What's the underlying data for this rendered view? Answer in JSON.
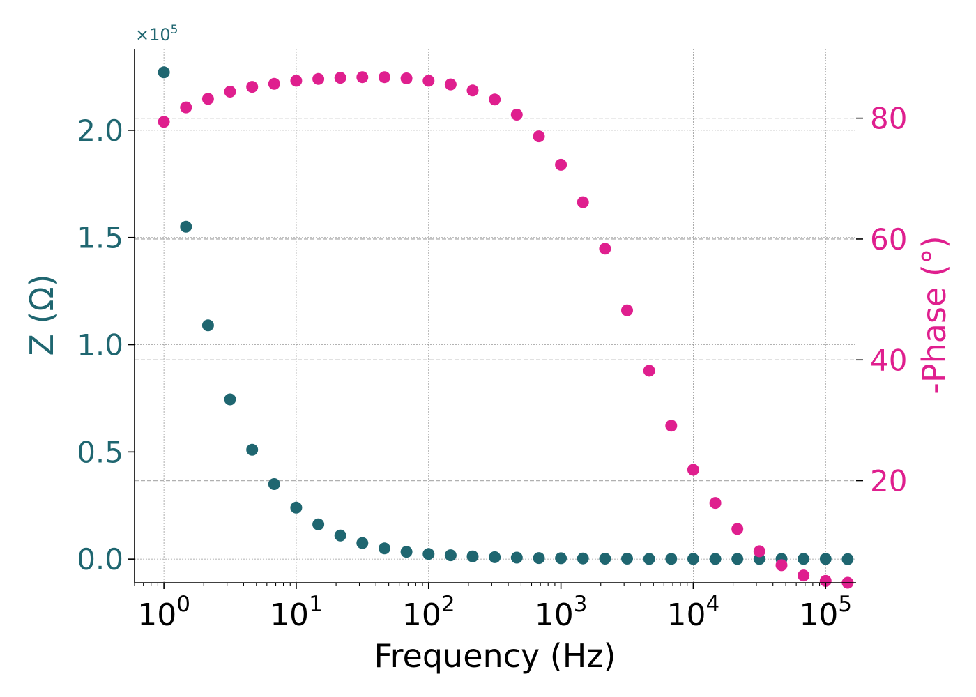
{
  "chart_data": {
    "type": "scatter",
    "xlabel": "Frequency (Hz)",
    "ylabel": "Z (Ω)",
    "y2label": "-Phase (°)",
    "xscale": "log",
    "xlim": [
      0.6,
      170000
    ],
    "ylim": [
      -0.11,
      2.38
    ],
    "y2lim": [
      3.1,
      91.5
    ],
    "y_multiplier": "×10",
    "y_multiplier_exp": "5",
    "colors": {
      "impedance": "#1f6670",
      "phase": "#df1f8e",
      "grid": "#b0b0b0"
    },
    "x_ticks": [
      {
        "value": 1,
        "base": "10",
        "exp": "0"
      },
      {
        "value": 10,
        "base": "10",
        "exp": "1"
      },
      {
        "value": 100,
        "base": "10",
        "exp": "2"
      },
      {
        "value": 1000,
        "base": "10",
        "exp": "3"
      },
      {
        "value": 10000,
        "base": "10",
        "exp": "4"
      },
      {
        "value": 100000,
        "base": "10",
        "exp": "5"
      }
    ],
    "y_ticks": [
      {
        "value": 0.0,
        "label": "0.0"
      },
      {
        "value": 0.5,
        "label": "0.5"
      },
      {
        "value": 1.0,
        "label": "1.0"
      },
      {
        "value": 1.5,
        "label": "1.5"
      },
      {
        "value": 2.0,
        "label": "2.0"
      }
    ],
    "y2_ticks": [
      {
        "value": 20,
        "label": "20"
      },
      {
        "value": 40,
        "label": "40"
      },
      {
        "value": 60,
        "label": "60"
      },
      {
        "value": 80,
        "label": "80"
      }
    ],
    "x": [
      1,
      1.468,
      2.154,
      3.162,
      4.642,
      6.813,
      10,
      14.68,
      21.54,
      31.62,
      46.42,
      68.13,
      100,
      146.8,
      215.4,
      316.2,
      464.2,
      681.3,
      1000,
      1468,
      2154,
      3162,
      4642,
      6813,
      10000,
      14680,
      21540,
      31620,
      46420,
      68130,
      100000,
      146800
    ],
    "series": [
      {
        "axis": "left",
        "values": [
          2.27,
          1.55,
          1.09,
          0.745,
          0.51,
          0.35,
          0.24,
          0.162,
          0.11,
          0.075,
          0.05,
          0.034,
          0.024,
          0.018,
          0.013,
          0.009,
          0.007,
          0.005,
          0.004,
          0.003,
          0.002,
          0.002,
          0.001,
          0.001,
          0.001,
          0.001,
          0.001,
          0.001,
          0.001,
          0.001,
          0.001,
          0.0
        ]
      },
      {
        "axis": "right",
        "values": [
          79.4,
          81.8,
          83.2,
          84.4,
          85.2,
          85.7,
          86.2,
          86.5,
          86.7,
          86.8,
          86.8,
          86.6,
          86.2,
          85.6,
          84.6,
          83.1,
          80.6,
          77.0,
          72.3,
          66.1,
          58.4,
          48.2,
          38.2,
          29.1,
          21.8,
          16.3,
          12.0,
          8.3,
          6.0,
          4.3,
          3.4,
          3.1
        ]
      }
    ]
  }
}
